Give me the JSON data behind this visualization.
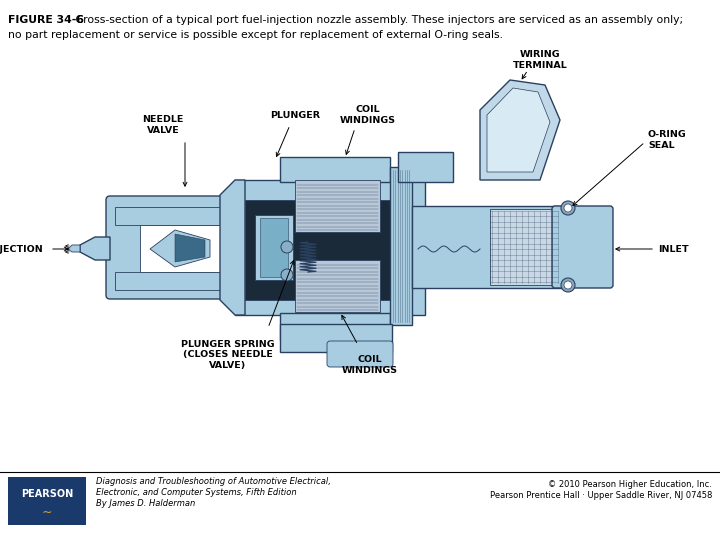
{
  "title_bold": "FIGURE 34-6",
  "title_text": " Cross-section of a typical port fuel-injection nozzle assembly. These injectors are serviced as an assembly only;",
  "title_line2": "no part replacement or service is possible except for replacement of external O-ring seals.",
  "footer_left_line1": "Diagnosis and Troubleshooting of Automotive Electrical,",
  "footer_left_line2": "Electronic, and Computer Systems, Fifth Edition",
  "footer_left_line3": "By James D. Halderman",
  "footer_right_line1": "© 2010 Pearson Higher Education, Inc.",
  "footer_right_line2": "Pearson Prentice Hall · Upper Saddle River, NJ 07458",
  "bg_color": "#ffffff",
  "pearson_box_color": "#1a3a6b",
  "light_blue": "#a8cde0",
  "med_blue": "#6ba3be",
  "dark_blue": "#2a5a78",
  "very_dark": "#1a2a38",
  "coil_color": "#b8c8d8",
  "outline": "#2a4060",
  "terminal_blue": "#c0d8e8",
  "screen_color": "#c8d8e4"
}
